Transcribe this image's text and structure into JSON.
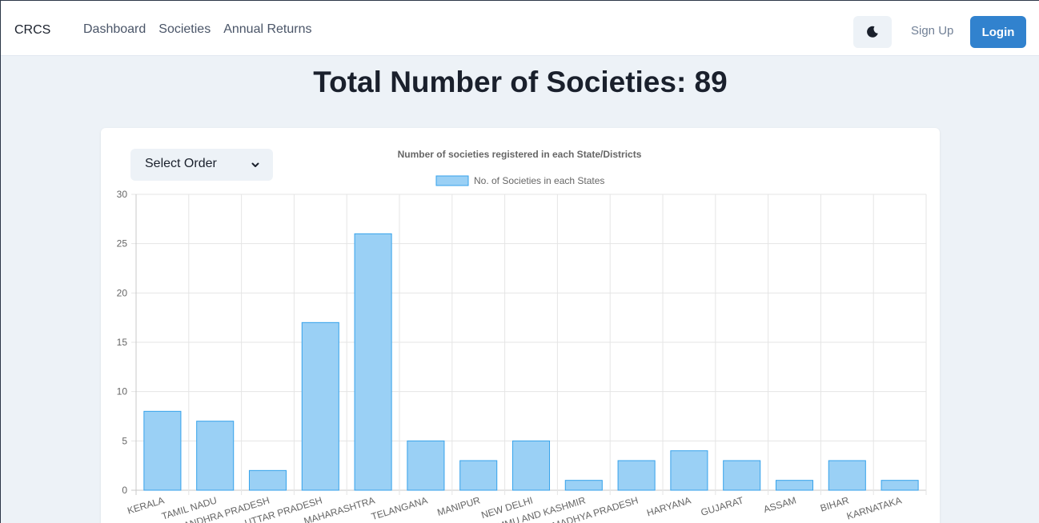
{
  "nav": {
    "brand": "CRCS",
    "links": [
      "Dashboard",
      "Societies",
      "Annual Returns"
    ],
    "signup": "Sign Up",
    "login": "Login",
    "theme_icon": "moon-icon"
  },
  "page": {
    "title": "Total Number of Societies: 89"
  },
  "order_select": {
    "selected": "Select Order",
    "icon": "chevron-down-icon"
  },
  "colors": {
    "accent": "#3182ce",
    "bar_fill": "#9ad0f5",
    "bar_stroke": "#36a2eb",
    "page_bg": "#edf2f7"
  },
  "chart_data": {
    "type": "bar",
    "title": "Number of societies registered in each State/Districts",
    "categories": [
      "KERALA",
      "TAMIL NADU",
      "ANDHRA PRADESH",
      "UTTAR PRADESH",
      "MAHARASHTRA",
      "TELANGANA",
      "MANIPUR",
      "NEW DELHI",
      "JAMMU AND KASHMIR",
      "MADHYA PRADESH",
      "HARYANA",
      "GUJARAT",
      "ASSAM",
      "BIHAR",
      "KARNATAKA"
    ],
    "series": [
      {
        "name": "No. of Societies in each States",
        "values": [
          8,
          7,
          2,
          17,
          26,
          5,
          3,
          5,
          1,
          3,
          4,
          3,
          1,
          3,
          1
        ]
      }
    ],
    "ylim": [
      0,
      30
    ],
    "yticks": [
      0,
      5,
      10,
      15,
      20,
      25,
      30
    ],
    "grid": true,
    "legend": "top-center"
  }
}
